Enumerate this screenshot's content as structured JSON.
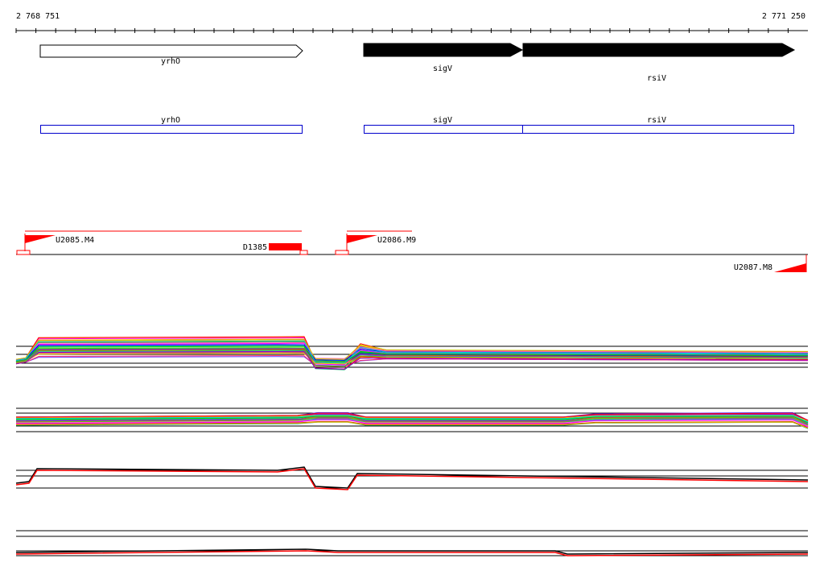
{
  "coordinates": {
    "start_label": "2 768 751",
    "end_label": "2 771 250"
  },
  "genes": [
    {
      "name": "yrhO",
      "strand": "forward",
      "filled": false
    },
    {
      "name": "sigV",
      "strand": "forward",
      "filled": true
    },
    {
      "name": "rsiV",
      "strand": "forward",
      "filled": true
    }
  ],
  "transcripts": [
    {
      "name": "yrhO"
    },
    {
      "name": "sigV"
    },
    {
      "name": "rsiV"
    }
  ],
  "features": [
    {
      "name": "U2085.M4",
      "type": "upshift"
    },
    {
      "name": "D1385",
      "type": "downshift"
    },
    {
      "name": "U2086.M9",
      "type": "upshift"
    },
    {
      "name": "U2087.M8",
      "type": "upshift"
    }
  ],
  "colors": {
    "gene_outline": "#000000",
    "transcript_box": "#0000cc",
    "feature": "#ff0000",
    "background": "#ffffff"
  },
  "chart_data": {
    "type": "line",
    "panels": [
      {
        "name": "",
        "series_count": "many"
      },
      {
        "name": "",
        "series_count": "many"
      },
      {
        "name": "",
        "series_count": 2
      },
      {
        "name": "",
        "series_count": 2
      }
    ]
  }
}
